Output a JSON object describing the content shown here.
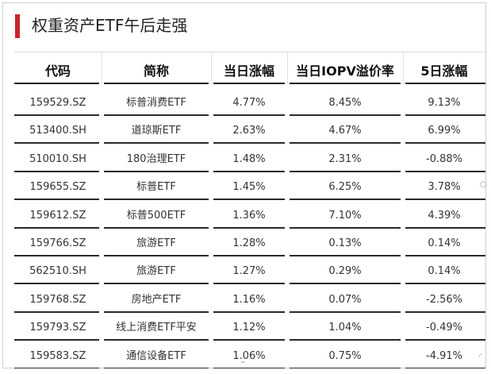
{
  "title": "权重资产ETF午后走强",
  "table": {
    "headers": [
      "代码",
      "简称",
      "当日涨幅",
      "当日IOPV溢价率",
      "5日涨幅"
    ],
    "rows": [
      [
        "159529.SZ",
        "标普消费ETF",
        "4.77%",
        "8.45%",
        "9.13%"
      ],
      [
        "513400.SH",
        "道琼斯ETF",
        "2.63%",
        "4.67%",
        "6.99%"
      ],
      [
        "510010.SH",
        "180治理ETF",
        "1.48%",
        "2.31%",
        "-0.88%"
      ],
      [
        "159655.SZ",
        "标普ETF",
        "1.45%",
        "6.25%",
        "3.78%"
      ],
      [
        "159612.SZ",
        "标普500ETF",
        "1.36%",
        "7.10%",
        "4.39%"
      ],
      [
        "159766.SZ",
        "旅游ETF",
        "1.28%",
        "0.13%",
        "0.14%"
      ],
      [
        "562510.SH",
        "旅游ETF",
        "1.27%",
        "0.29%",
        "0.14%"
      ],
      [
        "159768.SZ",
        "房地产ETF",
        "1.16%",
        "0.07%",
        "-2.56%"
      ],
      [
        "159793.SZ",
        "线上消费ETF平安",
        "1.12%",
        "1.04%",
        "-0.49%"
      ],
      [
        "159583.SZ",
        "通信设备ETF",
        "1.06%",
        "0.75%",
        "-4.91%"
      ]
    ]
  },
  "colors": {
    "accent": "#c8262c",
    "rule": "#222222",
    "text": "#333333"
  }
}
